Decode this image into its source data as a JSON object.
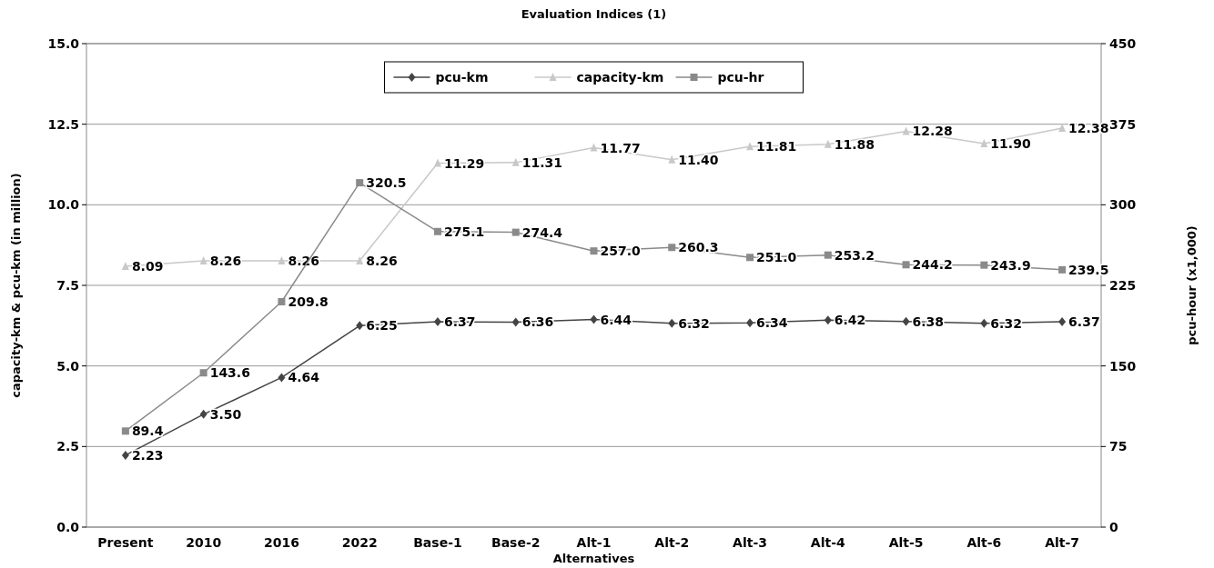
{
  "chart_data": {
    "type": "line",
    "title": "Evaluation Indices (1)",
    "xlabel": "Alternatives",
    "ylabel": "capacity-km & pcu-km (in million)",
    "y2label": "pcu-hour (x1,000)",
    "categories": [
      "Present",
      "2010",
      "2016",
      "2022",
      "Base-1",
      "Base-2",
      "Alt-1",
      "Alt-2",
      "Alt-3",
      "Alt-4",
      "Alt-5",
      "Alt-6",
      "Alt-7"
    ],
    "series": [
      {
        "name": "pcu-km",
        "color": "#444444",
        "marker": "diamond",
        "values": [
          2.23,
          3.5,
          4.64,
          6.25,
          6.37,
          6.36,
          6.44,
          6.32,
          6.34,
          6.42,
          6.38,
          6.32,
          6.37
        ],
        "value_labels": [
          "2.23",
          "3.50",
          "4.64",
          "6.25",
          "6.37",
          "6.36",
          "6.44",
          "6.32",
          "6.34",
          "6.42",
          "6.38",
          "6.32",
          "6.37"
        ]
      },
      {
        "name": "capacity-km",
        "color": "#c8c8c8",
        "marker": "triangle",
        "values": [
          8.09,
          8.26,
          8.26,
          8.26,
          11.29,
          11.31,
          11.77,
          11.4,
          11.81,
          11.88,
          12.28,
          11.9,
          12.38
        ],
        "value_labels": [
          "8.09",
          "8.26",
          "8.26",
          "8.26",
          "11.29",
          "11.31",
          "11.77",
          "11.40",
          "11.81",
          "11.88",
          "12.28",
          "11.90",
          "12.38"
        ]
      },
      {
        "name": "pcu-hr",
        "color": "#8a8a8a",
        "marker": "square",
        "axis": "y2",
        "values": [
          89.4,
          143.6,
          209.8,
          320.5,
          275.1,
          274.4,
          257.0,
          260.3,
          251.0,
          253.2,
          244.2,
          243.9,
          239.5
        ],
        "value_labels": [
          "89.4",
          "143.6",
          "209.8",
          "320.5",
          "275.1",
          "274.4",
          "257.0",
          "260.3",
          "251.0",
          "253.2",
          "244.2",
          "243.9",
          "239.5"
        ]
      }
    ],
    "ylim": [
      0,
      15
    ],
    "yticks": [
      {
        "value": 0,
        "label": "0.0"
      },
      {
        "value": 2.5,
        "label": "2.5"
      },
      {
        "value": 5,
        "label": "5.0"
      },
      {
        "value": 7.5,
        "label": "7.5"
      },
      {
        "value": 10,
        "label": "10.0"
      },
      {
        "value": 12.5,
        "label": "12.5"
      },
      {
        "value": 15,
        "label": "15.0"
      }
    ],
    "y2lim": [
      0,
      450
    ],
    "y2ticks": [
      0,
      75,
      150,
      225,
      300,
      375,
      450
    ],
    "grid": "y",
    "legend": "top"
  }
}
